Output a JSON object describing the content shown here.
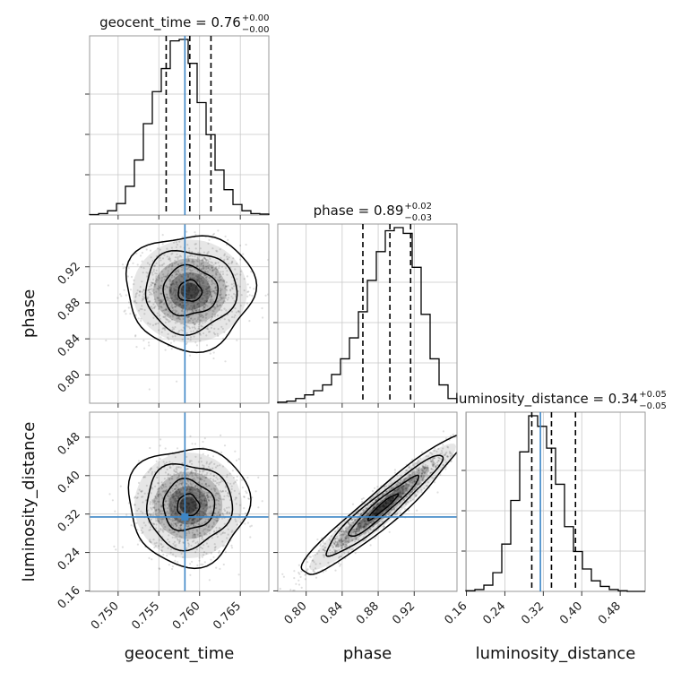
{
  "chart_data": {
    "type": "corner",
    "parameters": [
      "geocent_time",
      "phase",
      "luminosity_distance"
    ],
    "truths": {
      "geocent_time": 0.7582,
      "phase": null,
      "luminosity_distance": 0.314
    },
    "colors": {
      "hist": "#000000",
      "truth": "#3d86c6",
      "grid": "#c8c8c8",
      "quantile": "#000000"
    },
    "titles": [
      {
        "param": "geocent_time",
        "text": "geocent_time = 0.76",
        "plus": "+0.00",
        "minus": "−0.00"
      },
      {
        "param": "phase",
        "text": "phase = 0.89",
        "plus": "+0.02",
        "minus": "−0.03"
      },
      {
        "param": "luminosity_distance",
        "text": "luminosity_distance = 0.34",
        "plus": "+0.05",
        "minus": "−0.05"
      }
    ],
    "axes": {
      "geocent_time": {
        "range": [
          0.7465,
          0.7685
        ],
        "ticks": [
          0.75,
          0.755,
          0.76,
          0.765
        ],
        "tick_labels": [
          "0.750",
          "0.755",
          "0.760",
          "0.765"
        ]
      },
      "phase": {
        "range": [
          0.7685,
          0.9675
        ],
        "ticks": [
          0.8,
          0.84,
          0.88,
          0.92
        ],
        "tick_labels": [
          "0.80",
          "0.84",
          "0.88",
          "0.92"
        ]
      },
      "luminosity_distance": {
        "range": [
          0.159,
          0.532
        ],
        "ticks": [
          0.16,
          0.24,
          0.32,
          0.4,
          0.48
        ],
        "tick_labels": [
          "0.16",
          "0.24",
          "0.32",
          "0.40",
          "0.48"
        ]
      }
    },
    "histograms": {
      "geocent_time": {
        "edges_start": 0.7465,
        "bin_width": 0.0011,
        "counts": [
          1,
          3,
          9,
          24,
          60,
          115,
          191,
          258,
          306,
          364,
          367,
          317,
          235,
          168,
          94,
          53,
          22,
          9,
          3,
          2
        ],
        "quantiles": [
          0.7559,
          0.7588,
          0.7614
        ]
      },
      "phase": {
        "edges_start": 0.7685,
        "bin_width": 0.00995,
        "counts": [
          2,
          4,
          9,
          16,
          24,
          35,
          55,
          85,
          125,
          175,
          235,
          290,
          330,
          336,
          325,
          260,
          170,
          85,
          35,
          9
        ],
        "quantiles": [
          0.863,
          0.893,
          0.916
        ]
      },
      "luminosity_distance": {
        "edges_start": 0.159,
        "bin_width": 0.01865,
        "counts": [
          1,
          3,
          10,
          30,
          76,
          146,
          224,
          282,
          265,
          230,
          172,
          104,
          64,
          36,
          17,
          8,
          3,
          1,
          0,
          0
        ],
        "quantiles": [
          0.296,
          0.337,
          0.387
        ]
      }
    },
    "pairs": [
      {
        "x": "geocent_time",
        "y": "phase",
        "center": [
          0.7588,
          0.893
        ],
        "sd": [
          0.0032,
          0.026
        ],
        "rho": 0.0
      },
      {
        "x": "geocent_time",
        "y": "luminosity_distance",
        "center": [
          0.7586,
          0.338
        ],
        "sd": [
          0.003,
          0.05
        ],
        "rho": 0.0
      },
      {
        "x": "phase",
        "y": "luminosity_distance",
        "center": [
          0.885,
          0.335
        ],
        "sd": [
          0.037,
          0.06
        ],
        "rho": 0.95
      }
    ],
    "axis_labels": {
      "geocent_time": "geocent_time",
      "phase": "phase",
      "luminosity_distance": "luminosity_distance"
    },
    "grid": true
  }
}
